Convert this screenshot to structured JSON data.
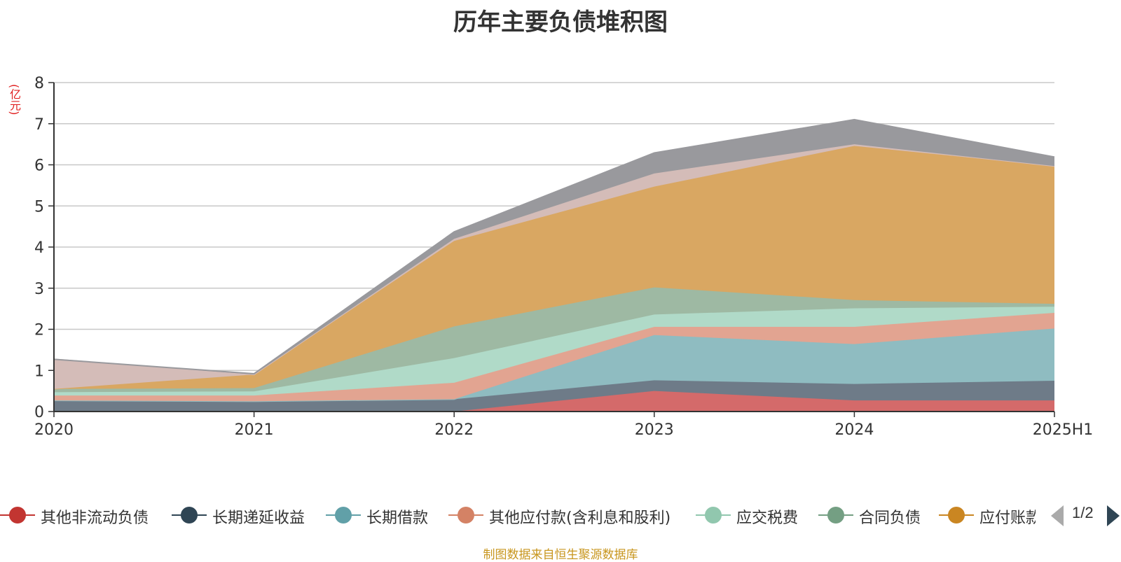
{
  "chart_data": {
    "type": "area",
    "title": "历年主要负债堆积图",
    "ylabel": "(亿元)",
    "xlabel": "",
    "ylim": [
      0,
      8
    ],
    "yticks": [
      "0",
      "1",
      "2",
      "3",
      "4",
      "5",
      "6",
      "7",
      "8"
    ],
    "categories": [
      "2020",
      "2021",
      "2022",
      "2023",
      "2024",
      "2025H1"
    ],
    "stacked": true,
    "grid": true,
    "legend_position": "bottom",
    "series": [
      {
        "name": "其他非流动负债",
        "color": "#d46a6a",
        "values": [
          0,
          0,
          0,
          0.5,
          0.27,
          0.27
        ]
      },
      {
        "name": "长期递延收益",
        "color": "#6e7b88",
        "values": [
          0.27,
          0.25,
          0.3,
          0.26,
          0.4,
          0.48
        ]
      },
      {
        "name": "长期借款",
        "color": "#8fbcc1",
        "values": [
          0,
          0,
          0,
          1.1,
          0.97,
          1.27
        ]
      },
      {
        "name": "其他应付款(含利息和股利)",
        "color": "#e2a491",
        "values": [
          0.12,
          0.14,
          0.4,
          0.2,
          0.42,
          0.38
        ]
      },
      {
        "name": "应交税费",
        "color": "#b0dac8",
        "values": [
          0.08,
          0.1,
          0.6,
          0.3,
          0.45,
          0.15
        ]
      },
      {
        "name": "合同负债",
        "color": "#9eb9a3",
        "values": [
          0.08,
          0.08,
          0.77,
          0.66,
          0.2,
          0.07
        ]
      },
      {
        "name": "应付账款",
        "color": "#d9a762",
        "values": [
          0,
          0.33,
          2.08,
          2.45,
          3.75,
          3.35
        ]
      },
      {
        "name": "",
        "color": "#d4bcb8",
        "values": [
          0.72,
          0,
          0.05,
          0.32,
          0.04,
          0
        ]
      },
      {
        "name": "",
        "color": "#99999d",
        "values": [
          0,
          0.02,
          0.17,
          0.5,
          0.6,
          0.22
        ]
      }
    ]
  },
  "legend": {
    "items": [
      {
        "label": "其他非流动负债",
        "color": "#c23531"
      },
      {
        "label": "长期递延收益",
        "color": "#2f4554"
      },
      {
        "label": "长期借款",
        "color": "#61a0a8"
      },
      {
        "label": "其他应付款(含利息和股利)",
        "color": "#d48265"
      },
      {
        "label": "应交税费",
        "color": "#91c7ae"
      },
      {
        "label": "合同负债",
        "color": "#749f83"
      },
      {
        "label": "应付账款",
        "color": "#ca8622"
      }
    ],
    "page_indicator": "1/2",
    "prev_icon": "triangle-left-icon",
    "next_icon": "triangle-right-icon"
  },
  "source_note": "制图数据来自恒生聚源数据库"
}
